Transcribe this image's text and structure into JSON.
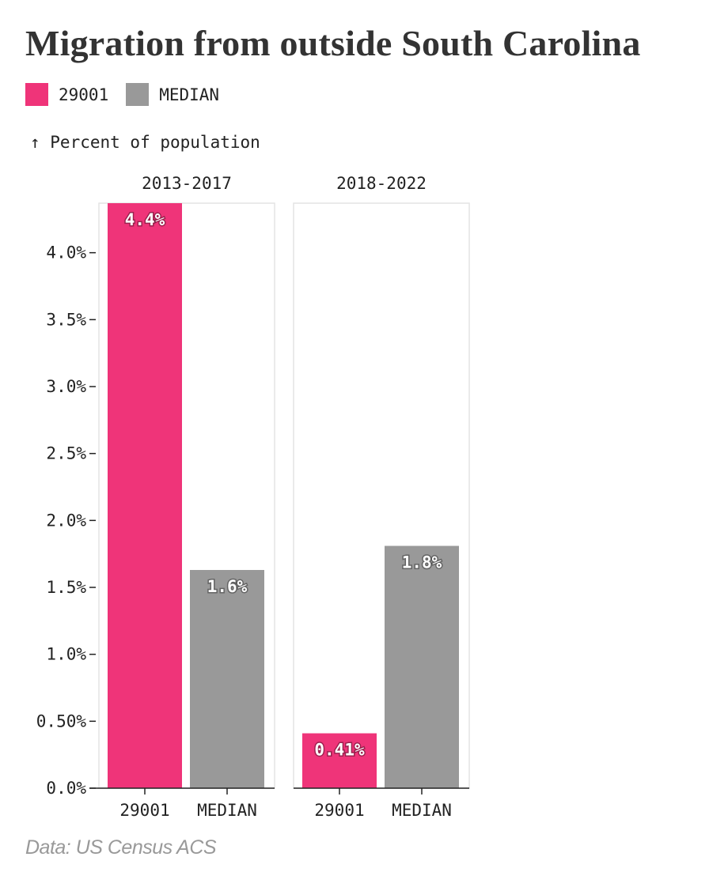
{
  "title": "Migration from outside South Carolina",
  "legend": [
    {
      "label": "29001",
      "color": "#ef3479"
    },
    {
      "label": "MEDIAN",
      "color": "#999999"
    }
  ],
  "y_axis_label": "↑ Percent of population",
  "source": "Data: US Census ACS",
  "chart_data": {
    "type": "bar",
    "ylabel": "Percent of population",
    "ylim": [
      0,
      4.37
    ],
    "yticks": [
      {
        "value": 0,
        "label": "0.0%"
      },
      {
        "value": 0.5,
        "label": "0.50%"
      },
      {
        "value": 1.0,
        "label": "1.0%"
      },
      {
        "value": 1.5,
        "label": "1.5%"
      },
      {
        "value": 2.0,
        "label": "2.0%"
      },
      {
        "value": 2.5,
        "label": "2.5%"
      },
      {
        "value": 3.0,
        "label": "3.0%"
      },
      {
        "value": 3.5,
        "label": "3.5%"
      },
      {
        "value": 4.0,
        "label": "4.0%"
      }
    ],
    "categories": [
      "29001",
      "MEDIAN"
    ],
    "grid": false,
    "legend_position": "top-left",
    "facets": [
      {
        "name": "2013-2017",
        "bars": [
          {
            "category": "29001",
            "value": 4.4,
            "label": "4.4%",
            "color": "#ef3479"
          },
          {
            "category": "MEDIAN",
            "value": 1.63,
            "label": "1.6%",
            "color": "#999999"
          }
        ]
      },
      {
        "name": "2018-2022",
        "bars": [
          {
            "category": "29001",
            "value": 0.41,
            "label": "0.41%",
            "color": "#ef3479"
          },
          {
            "category": "MEDIAN",
            "value": 1.81,
            "label": "1.8%",
            "color": "#999999"
          }
        ]
      }
    ]
  }
}
